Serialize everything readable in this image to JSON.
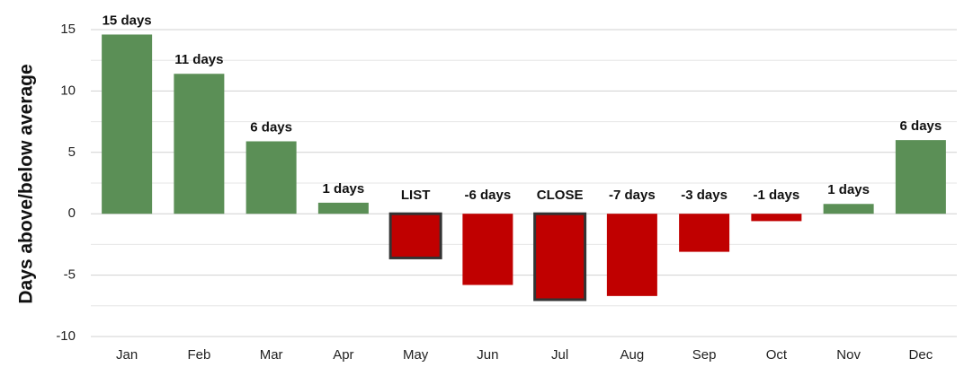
{
  "chart_data": {
    "type": "bar",
    "y_label": "Days above/below average",
    "categories": [
      "Jan",
      "Feb",
      "Mar",
      "Apr",
      "May",
      "Jun",
      "Jul",
      "Aug",
      "Sep",
      "Oct",
      "Nov",
      "Dec"
    ],
    "values": [
      14.6,
      11.4,
      5.9,
      0.9,
      -3.6,
      -5.8,
      -7.0,
      -6.7,
      -3.1,
      -0.6,
      0.8,
      6.0
    ],
    "value_labels": [
      "15 days",
      "11 days",
      "6 days",
      "1 days",
      "LIST",
      "-6 days",
      "CLOSE",
      "-7 days",
      "-3 days",
      "-1 days",
      "1 days",
      "6 days"
    ],
    "positive_color": "#5b8f56",
    "negative_color": "#c00000",
    "outline_color": "#333333",
    "outlined": [
      4,
      6
    ],
    "ylim": [
      -10,
      15
    ],
    "yticks": [
      -10,
      -5,
      0,
      5,
      10,
      15
    ],
    "minor_yticks": [
      -7.5,
      -2.5,
      2.5,
      7.5,
      12.5
    ],
    "grid": true
  }
}
